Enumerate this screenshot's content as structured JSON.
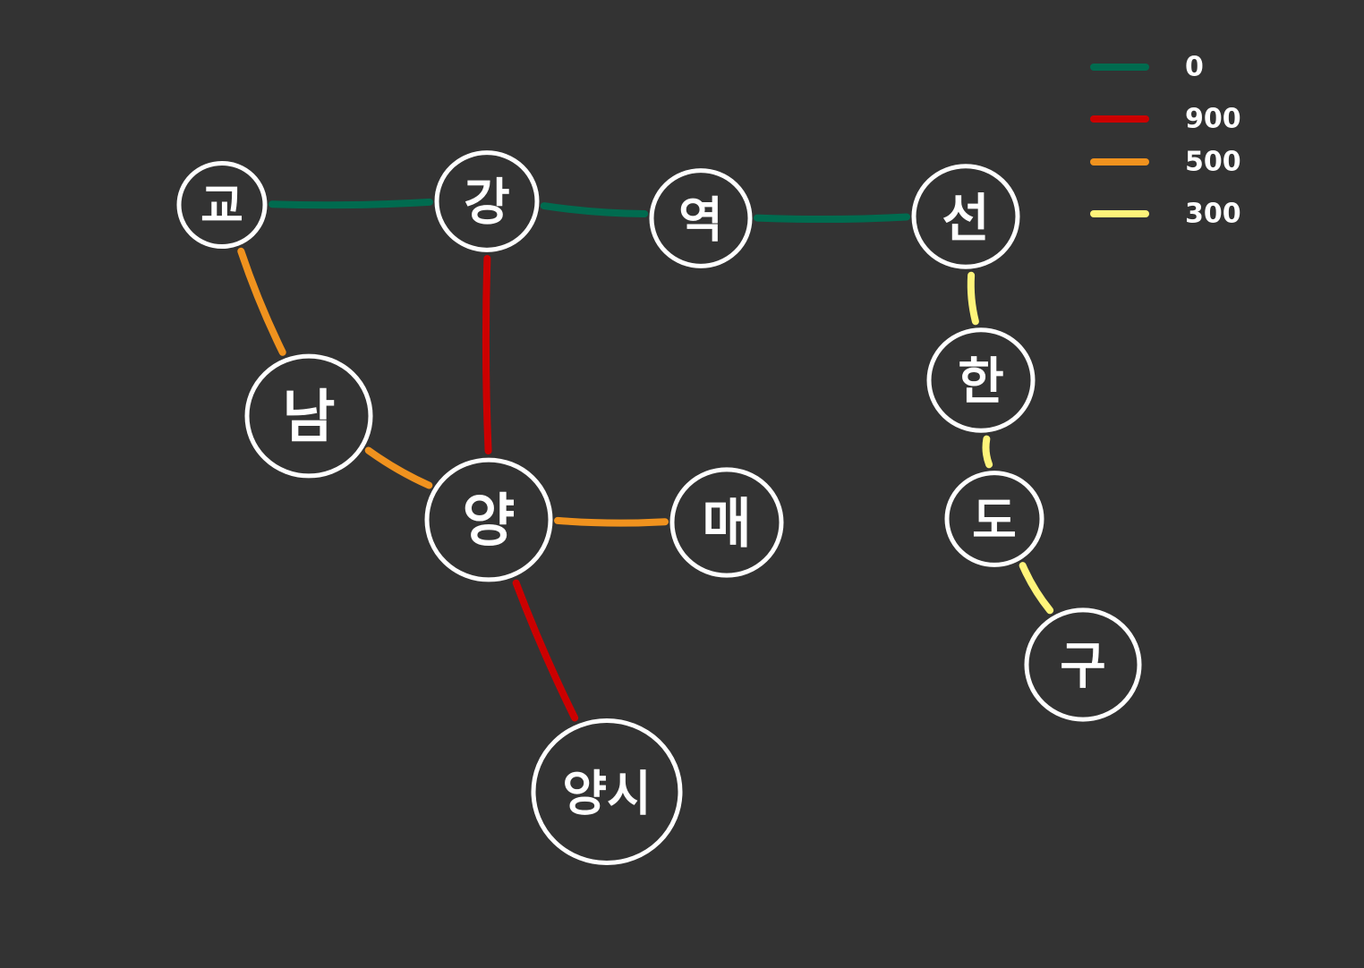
{
  "colors": {
    "background": "#333333",
    "node_outline": "#ffffff",
    "text": "#ffffff"
  },
  "legend": [
    {
      "label": "0",
      "color": "#006b4f"
    },
    {
      "label": "900",
      "color": "#cc0000"
    },
    {
      "label": "500",
      "color": "#f0921e"
    },
    {
      "label": "300",
      "color": "#fff47a"
    }
  ],
  "nodes": [
    {
      "id": "go",
      "label": "교"
    },
    {
      "id": "gang",
      "label": "강"
    },
    {
      "id": "yeok",
      "label": "역"
    },
    {
      "id": "seon",
      "label": "선"
    },
    {
      "id": "nam",
      "label": "남"
    },
    {
      "id": "yang",
      "label": "양"
    },
    {
      "id": "mae",
      "label": "매"
    },
    {
      "id": "yangsi",
      "label": "양시"
    },
    {
      "id": "han",
      "label": "한"
    },
    {
      "id": "do",
      "label": "도"
    },
    {
      "id": "gu",
      "label": "구"
    }
  ],
  "edges": [
    {
      "from": "go",
      "to": "gang",
      "weight": "0"
    },
    {
      "from": "gang",
      "to": "yeok",
      "weight": "0"
    },
    {
      "from": "yeok",
      "to": "seon",
      "weight": "0"
    },
    {
      "from": "gang",
      "to": "yang",
      "weight": "900"
    },
    {
      "from": "yang",
      "to": "yangsi",
      "weight": "900"
    },
    {
      "from": "go",
      "to": "nam",
      "weight": "500"
    },
    {
      "from": "nam",
      "to": "yang",
      "weight": "500"
    },
    {
      "from": "yang",
      "to": "mae",
      "weight": "500"
    },
    {
      "from": "seon",
      "to": "han",
      "weight": "300"
    },
    {
      "from": "han",
      "to": "do",
      "weight": "300"
    },
    {
      "from": "do",
      "to": "gu",
      "weight": "300"
    }
  ]
}
